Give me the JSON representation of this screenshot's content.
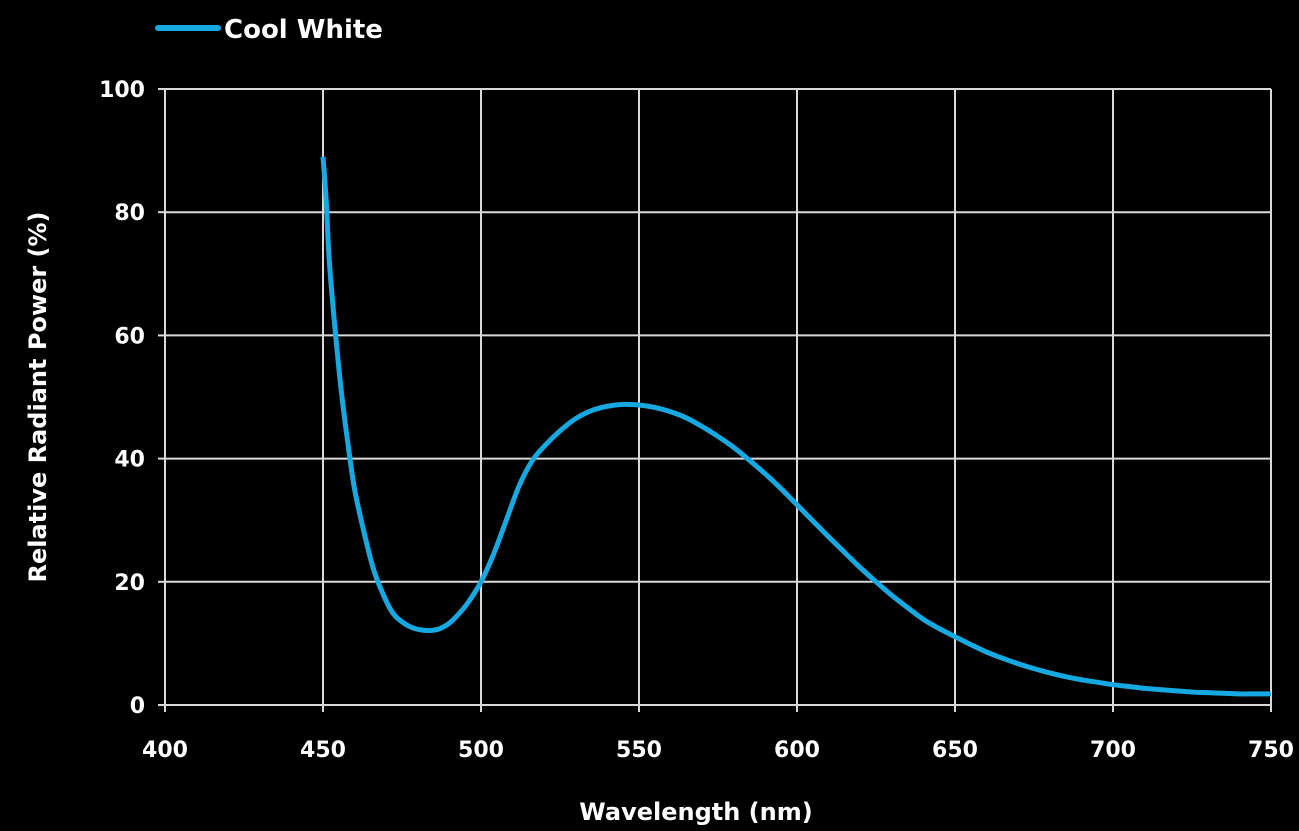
{
  "chart_data": {
    "type": "line",
    "xlabel": "Wavelength (nm)",
    "ylabel": "Relative Radiant Power (%)",
    "xlim": [
      400,
      750
    ],
    "ylim": [
      0,
      100
    ],
    "xticks": [
      400,
      450,
      500,
      550,
      600,
      650,
      700,
      750
    ],
    "yticks": [
      0,
      20,
      40,
      60,
      80,
      100
    ],
    "grid": true,
    "legend": "top-left",
    "background": "#000000",
    "grid_color": "#d9d9d9",
    "text_color": "#ffffff",
    "series": [
      {
        "name": "Cool White",
        "color": "#16a9e1",
        "x": [
          450,
          451,
          452,
          454,
          456,
          458,
          460,
          463,
          466,
          469,
          472,
          475,
          478,
          481,
          484,
          487,
          490,
          493,
          496,
          500,
          504,
          508,
          512,
          516,
          520,
          525,
          530,
          535,
          540,
          545,
          550,
          555,
          560,
          565,
          570,
          575,
          580,
          585,
          590,
          595,
          600,
          605,
          610,
          615,
          620,
          625,
          630,
          635,
          640,
          645,
          650,
          655,
          660,
          665,
          670,
          675,
          680,
          685,
          690,
          695,
          700,
          705,
          710,
          715,
          720,
          725,
          730,
          735,
          740,
          745,
          750
        ],
        "y": [
          89,
          82,
          72,
          60,
          50,
          42,
          35,
          28,
          22,
          18,
          15,
          13.5,
          12.6,
          12.2,
          12.1,
          12.4,
          13.3,
          14.8,
          16.7,
          20,
          24.5,
          30,
          35.5,
          39.5,
          42,
          44.5,
          46.5,
          47.8,
          48.5,
          48.8,
          48.7,
          48.3,
          47.6,
          46.6,
          45.2,
          43.6,
          41.8,
          39.7,
          37.5,
          35.1,
          32.5,
          29.9,
          27.3,
          24.8,
          22.3,
          20,
          17.8,
          15.8,
          13.9,
          12.4,
          11.1,
          9.8,
          8.6,
          7.6,
          6.7,
          5.9,
          5.2,
          4.6,
          4.1,
          3.7,
          3.3,
          3.0,
          2.7,
          2.5,
          2.3,
          2.1,
          2.0,
          1.9,
          1.8,
          1.8,
          1.8
        ]
      }
    ]
  }
}
